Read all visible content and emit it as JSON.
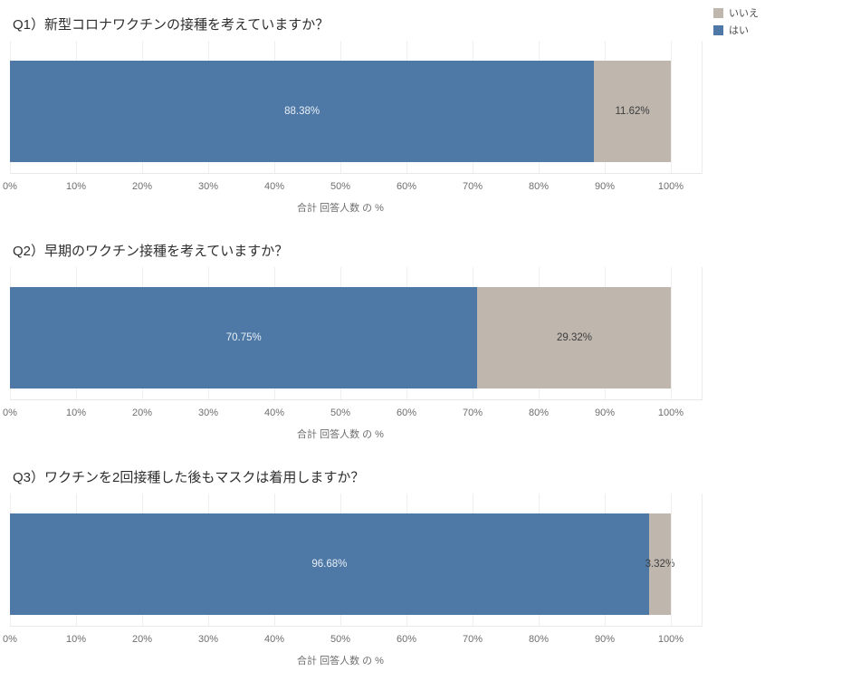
{
  "legend": {
    "items": [
      {
        "label": "いいえ",
        "color": "#bfb6ae"
      },
      {
        "label": "はい",
        "color": "#4e79a7"
      }
    ]
  },
  "chart_data": [
    {
      "type": "bar",
      "orientation": "horizontal",
      "stacked": true,
      "title": "Q1）新型コロナワクチンの接種を考えていますか？",
      "xlabel": "合計 回答人数 の %",
      "xlim": [
        0,
        100
      ],
      "grid": true,
      "legend_position": "top-right",
      "x_ticks": [
        "0%",
        "10%",
        "20%",
        "30%",
        "40%",
        "50%",
        "60%",
        "70%",
        "80%",
        "90%",
        "100%"
      ],
      "series": [
        {
          "name": "はい",
          "value": 88.38,
          "label": "88.38%",
          "color": "#4e79a7"
        },
        {
          "name": "いいえ",
          "value": 11.62,
          "label": "11.62%",
          "color": "#bfb6ae"
        }
      ]
    },
    {
      "type": "bar",
      "orientation": "horizontal",
      "stacked": true,
      "title": "Q2）早期のワクチン接種を考えていますか？",
      "xlabel": "合計 回答人数 の %",
      "xlim": [
        0,
        100
      ],
      "grid": true,
      "legend_position": "top-right",
      "x_ticks": [
        "0%",
        "10%",
        "20%",
        "30%",
        "40%",
        "50%",
        "60%",
        "70%",
        "80%",
        "90%",
        "100%"
      ],
      "series": [
        {
          "name": "はい",
          "value": 70.75,
          "label": "70.75%",
          "color": "#4e79a7"
        },
        {
          "name": "いいえ",
          "value": 29.32,
          "label": "29.32%",
          "color": "#bfb6ae"
        }
      ]
    },
    {
      "type": "bar",
      "orientation": "horizontal",
      "stacked": true,
      "title": "Q3）ワクチンを2回接種した後もマスクは着用しますか？",
      "xlabel": "合計 回答人数 の %",
      "xlim": [
        0,
        100
      ],
      "grid": true,
      "legend_position": "top-right",
      "x_ticks": [
        "0%",
        "10%",
        "20%",
        "30%",
        "40%",
        "50%",
        "60%",
        "70%",
        "80%",
        "90%",
        "100%"
      ],
      "series": [
        {
          "name": "はい",
          "value": 96.68,
          "label": "96.68%",
          "color": "#4e79a7"
        },
        {
          "name": "いいえ",
          "value": 3.32,
          "label": "3.32%",
          "color": "#bfb6ae"
        }
      ]
    }
  ]
}
